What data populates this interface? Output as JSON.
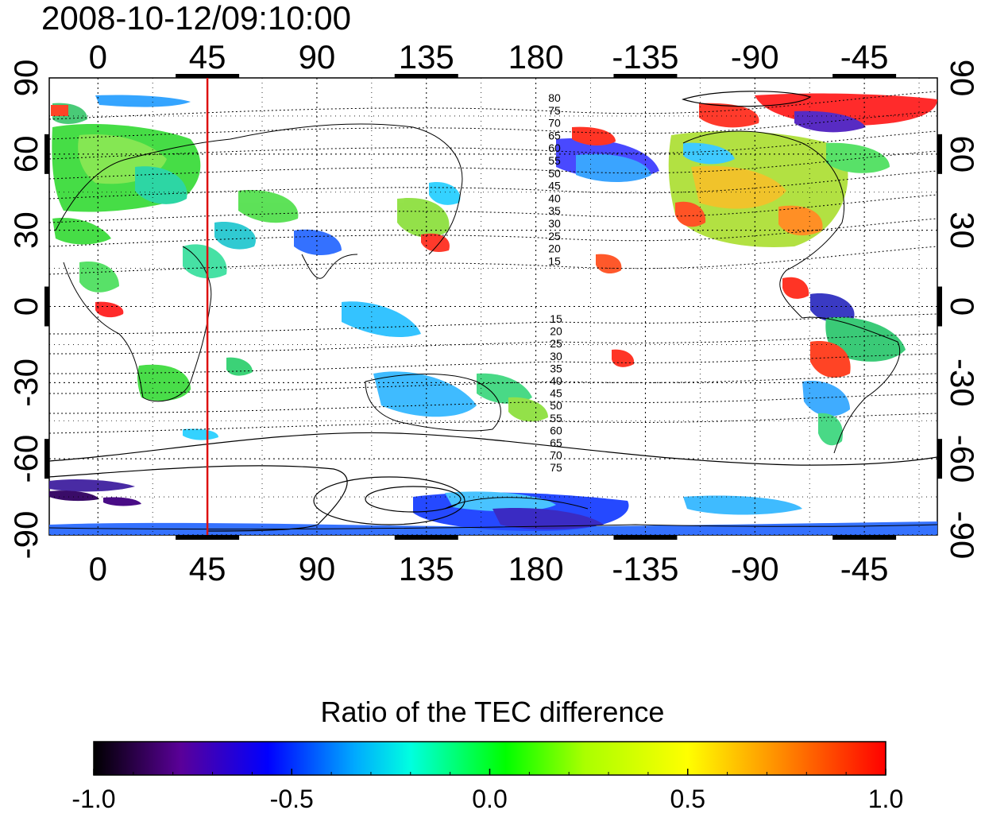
{
  "timestamp": "2008-10-12/09:10:00",
  "map": {
    "lon_ticks": [
      "0",
      "45",
      "90",
      "135",
      "180",
      "-135",
      "-90",
      "-45"
    ],
    "lon_values": [
      0,
      45,
      90,
      135,
      180,
      225,
      270,
      315
    ],
    "lon_range": [
      -20,
      345
    ],
    "lat_ticks": [
      "90",
      "60",
      "30",
      "0",
      "-30",
      "-60",
      "-90"
    ],
    "lat_values": [
      90,
      60,
      30,
      0,
      -30,
      -60,
      -90
    ],
    "lat_range": [
      -90,
      90
    ],
    "grid": "dotted",
    "marker_longitude": 45,
    "marker_color": "#dd1111",
    "contour_labels_north": [
      "80",
      "75",
      "70",
      "65",
      "60",
      "55",
      "50",
      "45",
      "40",
      "35",
      "30",
      "25",
      "20",
      "15"
    ],
    "contour_labels_south": [
      "15",
      "20",
      "25",
      "30",
      "35",
      "40",
      "45",
      "50",
      "55",
      "60",
      "65",
      "70",
      "75"
    ]
  },
  "colorbar": {
    "title": "Ratio of the TEC difference",
    "ticks": [
      "-1.0",
      "-0.5",
      "0.0",
      "0.5",
      "1.0"
    ],
    "range": [
      -1.0,
      1.0
    ],
    "colormap": [
      "#000000",
      "#5a0099",
      "#0000ff",
      "#00aaff",
      "#00ffe0",
      "#00ff00",
      "#aaff00",
      "#ffff00",
      "#ff8800",
      "#ff0000"
    ]
  }
}
